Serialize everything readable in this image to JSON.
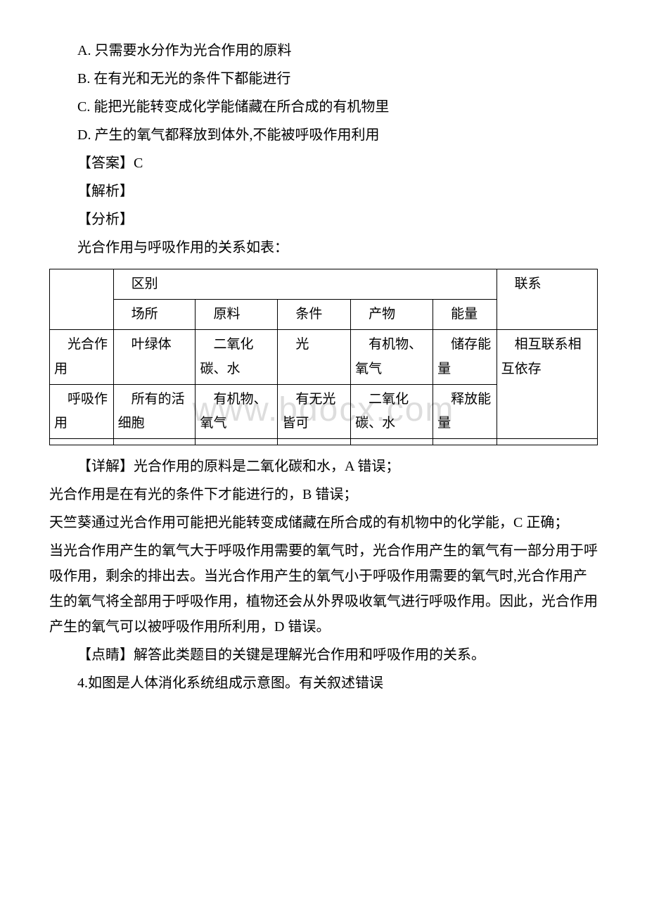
{
  "watermark": "www.bdocx.com",
  "options": {
    "A": "A. 只需要水分作为光合作用的原料",
    "B": "B. 在有光和无光的条件下都能进行",
    "C": "C. 能把光能转变成化学能储藏在所合成的有机物里",
    "D": "D. 产生的氧气都释放到体外,不能被呼吸作用利用"
  },
  "answer_label": "【答案】C",
  "explain_label": "【解析】",
  "analysis_label": "【分析】",
  "analysis_text": "光合作用与呼吸作用的关系如表：",
  "table": {
    "header": {
      "diff": "区别",
      "rel": "联系",
      "col1": "场所",
      "col2": "原料",
      "col3": "条件",
      "col4": "产物",
      "col5": "能量"
    },
    "row_photo": {
      "name": "光合作用",
      "c1": "叶绿体",
      "c2": "二氧化碳、水",
      "c3": "光",
      "c4": "有机物、氧气",
      "c5": "储存能量"
    },
    "row_resp": {
      "name": "呼吸作用",
      "c1": "所有的活细胞",
      "c2": "有机物、氧气",
      "c3": "有无光皆可",
      "c4": "二氧化碳、水",
      "c5": "释放能量"
    },
    "rel_text": "相互联系相互依存"
  },
  "detail_p1": "【详解】光合作用的原料是二氧化碳和水，A 错误；",
  "detail_p2": "光合作用是在有光的条件下才能进行的，B 错误；",
  "detail_p3": "天竺葵通过光合作用可能把光能转变成储藏在所合成的有机物中的化学能，C 正确；",
  "detail_p4": "当光合作用产生的氧气大于呼吸作用需要的氧气时，光合作用产生的氧气有一部分用于呼吸作用，剩余的排出去。当光合作用产生的氧气小于呼吸作用需要的氧气时,光合作用产生的氧气将全部用于呼吸作用，植物还会从外界吸收氧气进行呼吸作用。因此，光合作用产生的氧气可以被呼吸作用所利用，D 错误。",
  "insight": "【点睛】解答此类题目的关键是理解光合作用和呼吸作用的关系。",
  "next_q": "4.如图是人体消化系统组成示意图。有关叙述错误"
}
